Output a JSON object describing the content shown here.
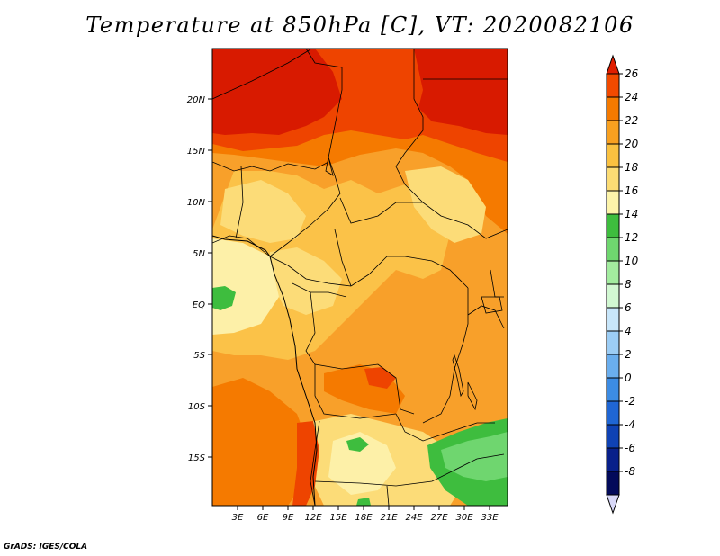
{
  "map": {
    "title": "Temperature at 850hPa [C], VT: 2020082106",
    "credit": "GrADS: IGES/COLA",
    "lat_labels": [
      "20N",
      "15N",
      "10N",
      "5N",
      "EQ",
      "5S",
      "10S",
      "15S"
    ],
    "lon_labels": [
      "3E",
      "6E",
      "9E",
      "12E",
      "15E",
      "18E",
      "21E",
      "24E",
      "27E",
      "30E",
      "33E"
    ]
  },
  "colorbar": {
    "levels": [
      "26",
      "24",
      "22",
      "20",
      "18",
      "16",
      "14",
      "12",
      "10",
      "8",
      "6",
      "4",
      "2",
      "0",
      "-2",
      "-4",
      "-6",
      "-8"
    ],
    "colors": [
      "#e01e00",
      "#f24a00",
      "#f57a00",
      "#f8a020",
      "#fac140",
      "#fcdc74",
      "#fdf4aa",
      "#3ebd3e",
      "#6fd66f",
      "#a3ec9f",
      "#d2f8d2",
      "#c8e6fa",
      "#9ccdf5",
      "#6aaeee",
      "#3c8ce4",
      "#1f66d4",
      "#0f42b4",
      "#08208a",
      "#030a5a"
    ],
    "under_color": "#d8d8f8"
  },
  "palette": {
    "c26": "#d81a00",
    "c24": "#ee4400",
    "c22": "#f57a00",
    "c20": "#f8a02a",
    "c18": "#fbc248",
    "c16": "#fcdc78",
    "c14": "#fdf0a8",
    "green12": "#3ebd3e",
    "green10": "#6fd66f"
  }
}
